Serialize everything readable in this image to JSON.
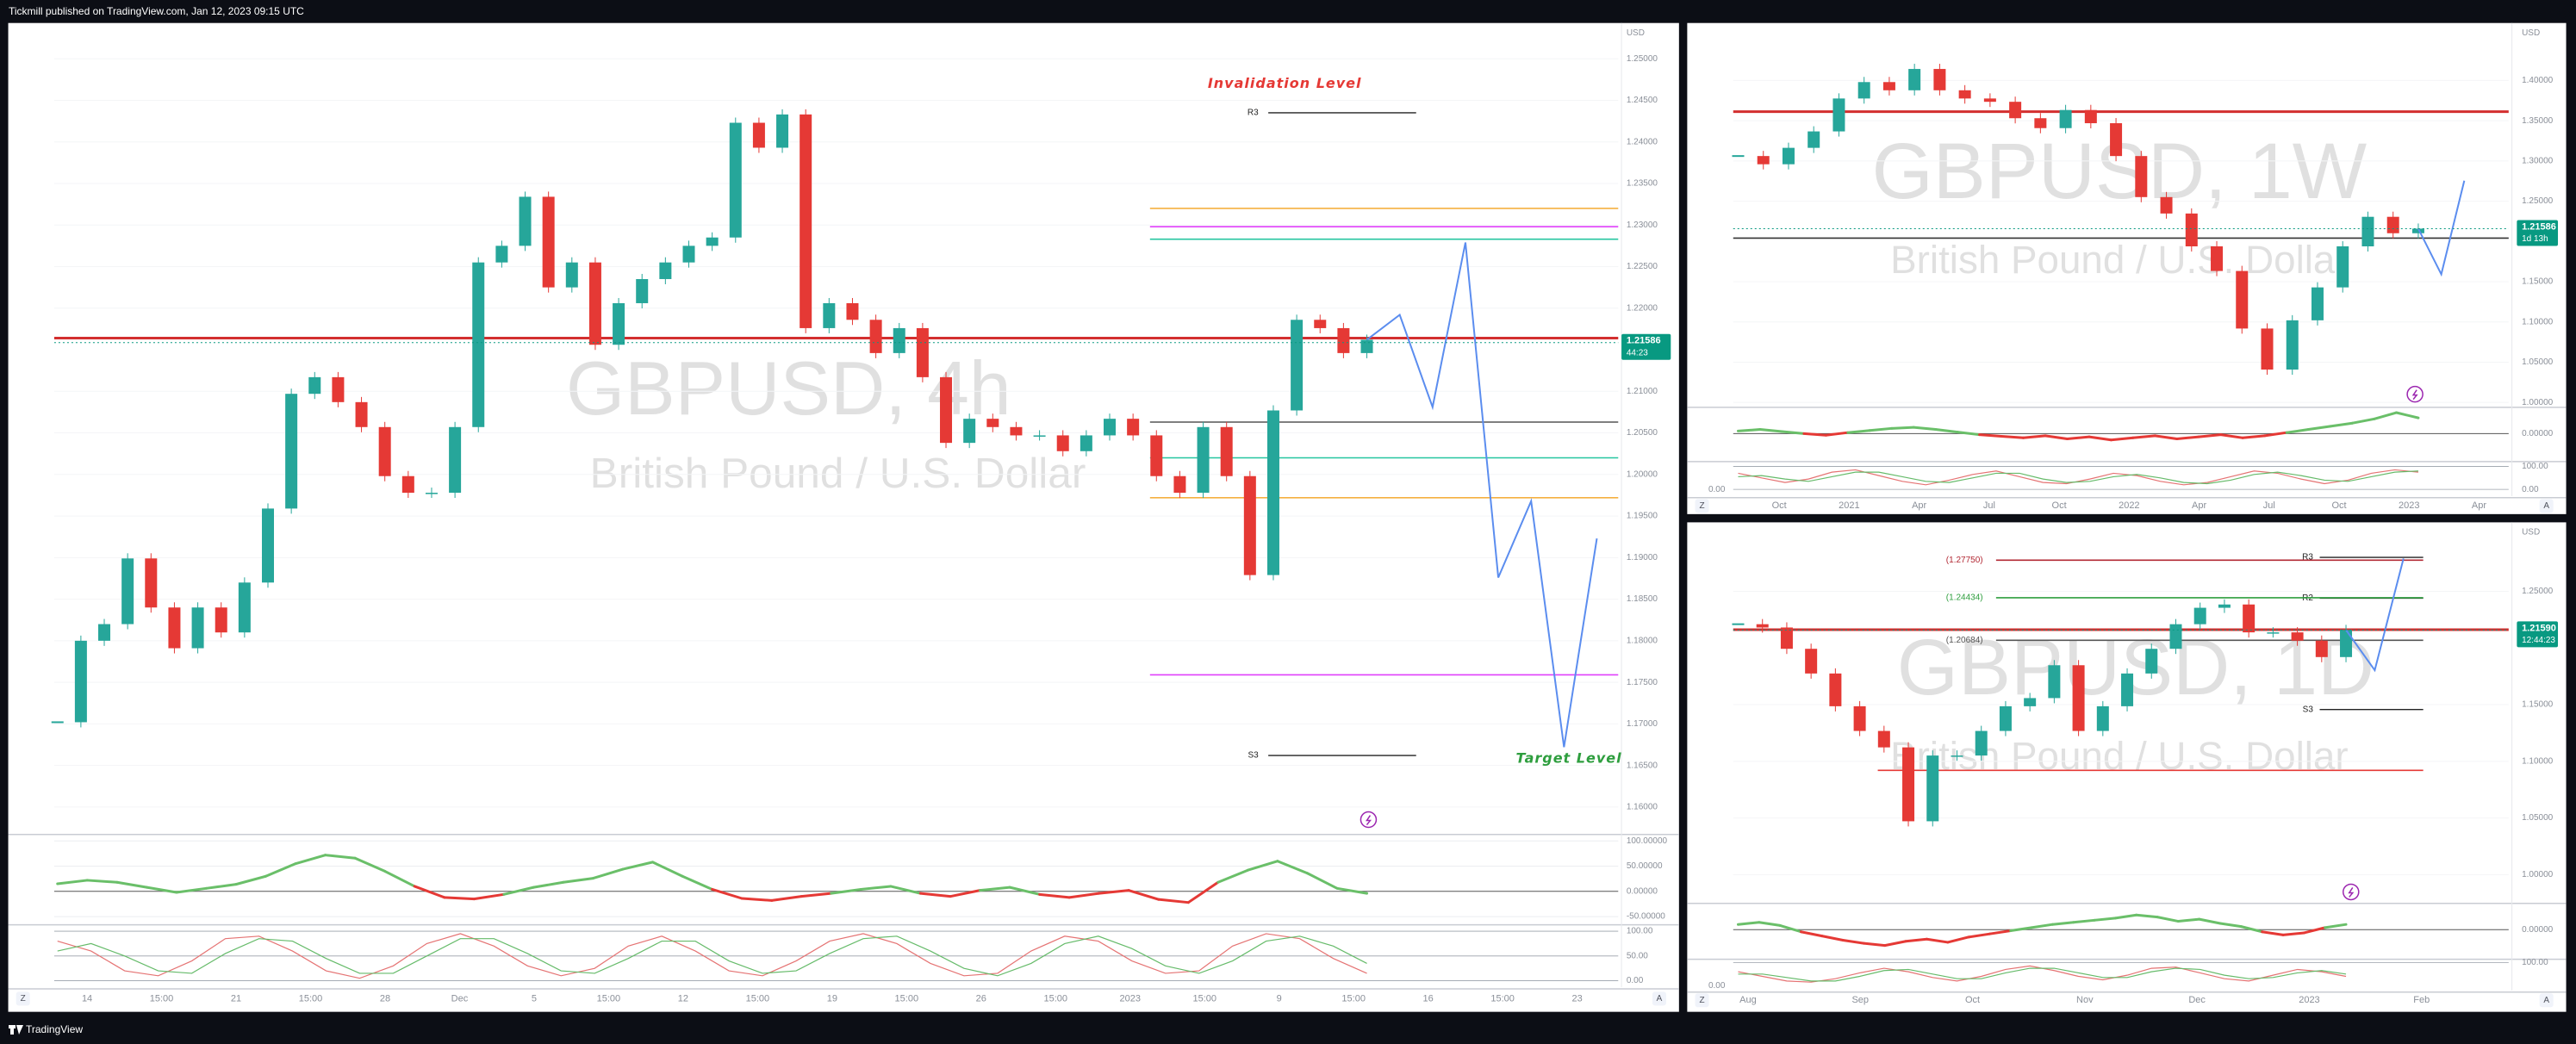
{
  "header": {
    "text": "Tickmill published on TradingView.com, Jan 12, 2023 09:15 UTC"
  },
  "footer": {
    "brand": "TradingView"
  },
  "chart_data": [
    {
      "type": "candlestick",
      "symbol_title": "GBPUSD, 4h",
      "subtitle": "British Pound / U.S. Dollar",
      "currency": "USD",
      "up_color": "#26a69a",
      "down_color": "#e53935",
      "values": [
        1.1702,
        1.18,
        1.182,
        1.1899,
        1.184,
        1.1791,
        1.184,
        1.181,
        1.187,
        1.1959,
        1.2097,
        1.2117,
        1.2087,
        1.2057,
        1.1998,
        1.1978,
        1.1978,
        1.2057,
        1.2255,
        1.2275,
        1.2334,
        1.2225,
        1.2255,
        1.2156,
        1.2206,
        1.2235,
        1.2255,
        1.2275,
        1.2285,
        1.2423,
        1.2393,
        1.2433,
        1.2176,
        1.2206,
        1.2186,
        1.2146,
        1.2176,
        1.2117,
        1.2038,
        1.2067,
        1.2057,
        1.2047,
        1.2047,
        1.2028,
        1.2047,
        1.2067,
        1.2047,
        1.1998,
        1.1978,
        1.2057,
        1.1998,
        1.1879,
        1.2077,
        1.2186,
        1.2176,
        1.2146,
        1.2162
      ],
      "ylim": [
        1.1571,
        1.2543
      ],
      "yticks": [
        {
          "value": 1.25,
          "label": "1.25000"
        },
        {
          "value": 1.245,
          "label": "1.24500"
        },
        {
          "value": 1.24,
          "label": "1.24000"
        },
        {
          "value": 1.235,
          "label": "1.23500"
        },
        {
          "value": 1.23,
          "label": "1.23000"
        },
        {
          "value": 1.225,
          "label": "1.22500"
        },
        {
          "value": 1.22,
          "label": "1.22000"
        },
        {
          "value": 1.21,
          "label": "1.21000"
        },
        {
          "value": 1.205,
          "label": "1.20500"
        },
        {
          "value": 1.2,
          "label": "1.20000"
        },
        {
          "value": 1.195,
          "label": "1.19500"
        },
        {
          "value": 1.19,
          "label": "1.19000"
        },
        {
          "value": 1.185,
          "label": "1.18500"
        },
        {
          "value": 1.18,
          "label": "1.18000"
        },
        {
          "value": 1.175,
          "label": "1.17500"
        },
        {
          "value": 1.17,
          "label": "1.17000"
        },
        {
          "value": 1.165,
          "label": "1.16500"
        },
        {
          "value": 1.16,
          "label": "1.16000"
        }
      ],
      "current_price": {
        "value": 1.21586,
        "label": "1.21586",
        "countdown": "44:23",
        "color": "#089981"
      },
      "time_labels": [
        "14",
        "15:00",
        "21",
        "15:00",
        "28",
        "Dec",
        "5",
        "15:00",
        "12",
        "15:00",
        "19",
        "15:00",
        "26",
        "15:00",
        "2023",
        "15:00",
        "9",
        "15:00",
        "16",
        "15:00",
        "23"
      ],
      "projection": {
        "color": "#5b8def",
        "values": [
          1.2162,
          1.2192,
          1.2081,
          1.2279,
          1.1876,
          1.1968,
          1.1672,
          1.1923
        ]
      },
      "main_level": {
        "value": 1.2164,
        "color": "#d32f2f"
      },
      "levels": [
        {
          "value": 1.232,
          "color": "#f5b041"
        },
        {
          "value": 1.2298,
          "color": "#e040fb"
        },
        {
          "value": 1.2283,
          "color": "#26c6a0"
        },
        {
          "value": 1.2063,
          "color": "#555555"
        },
        {
          "value": 1.202,
          "color": "#26c6a0"
        },
        {
          "value": 1.1972,
          "color": "#f5b041"
        },
        {
          "value": 1.1759,
          "color": "#e040fb"
        }
      ],
      "pivots": [
        {
          "label": "R3",
          "value": 1.2435
        },
        {
          "label": "S3",
          "value": 1.1662
        }
      ],
      "fib_levels": [],
      "annotations": [
        {
          "text": "Invalidation Level",
          "color": "#e53935"
        },
        {
          "text": "Target Level",
          "color": "#2e9e3e"
        }
      ],
      "oscillator": {
        "ylim": [
          -63,
          113
        ],
        "up_color": "#6abf69",
        "down_color": "#e53935",
        "yticks": [
          {
            "value": 100,
            "label": "100.00000"
          },
          {
            "value": 50,
            "label": "50.00000"
          },
          {
            "value": 0,
            "label": "0.00000"
          },
          {
            "value": -50,
            "label": "-50.00000"
          }
        ],
        "values": [
          15,
          22,
          18,
          8,
          -2,
          6,
          14,
          30,
          55,
          72,
          66,
          40,
          10,
          -12,
          -15,
          -6,
          8,
          18,
          26,
          44,
          58,
          30,
          4,
          -14,
          -18,
          -10,
          -4,
          4,
          10,
          -4,
          -10,
          2,
          8,
          -6,
          -12,
          -4,
          2,
          -16,
          -22,
          18,
          42,
          60,
          36,
          6,
          -4
        ]
      },
      "stochastic": {
        "ylim": [
          -13,
          113
        ],
        "yticks": [
          {
            "value": 100,
            "label": "100.00"
          },
          {
            "value": 50,
            "label": "50.00"
          },
          {
            "value": 0,
            "label": "0.00"
          }
        ],
        "left_labels": [],
        "series": [
          {
            "color": "#e57373",
            "values": [
              80,
              60,
              20,
              10,
              40,
              85,
              90,
              60,
              20,
              5,
              30,
              75,
              95,
              70,
              30,
              10,
              25,
              70,
              90,
              60,
              20,
              10,
              40,
              80,
              95,
              75,
              35,
              10,
              15,
              60,
              90,
              80,
              40,
              15,
              20,
              70,
              95,
              85,
              45,
              15
            ]
          },
          {
            "color": "#66bb6a",
            "values": [
              60,
              75,
              50,
              20,
              15,
              55,
              85,
              80,
              45,
              15,
              15,
              50,
              85,
              85,
              55,
              20,
              15,
              45,
              80,
              80,
              40,
              15,
              20,
              55,
              85,
              90,
              60,
              25,
              10,
              35,
              75,
              90,
              65,
              30,
              15,
              40,
              80,
              90,
              70,
              35
            ]
          }
        ]
      },
      "buttons": [
        "Z",
        "A"
      ]
    },
    {
      "type": "candlestick",
      "symbol_title": "GBPUSD, 1W",
      "subtitle": "British Pound / U.S. Dollar",
      "currency": "USD",
      "up_color": "#26a69a",
      "down_color": "#e53935",
      "values": [
        1.3061,
        1.2959,
        1.3163,
        1.3367,
        1.3776,
        1.398,
        1.3878,
        1.4143,
        1.3878,
        1.3776,
        1.3735,
        1.3531,
        1.3408,
        1.3633,
        1.3469,
        1.3061,
        1.2551,
        1.2347,
        1.1939,
        1.1633,
        1.0918,
        1.0408,
        1.102,
        1.1429,
        1.1939,
        1.2306,
        1.2102,
        1.2159
      ],
      "ylim": [
        0.9959,
        1.4714
      ],
      "yticks": [
        {
          "value": 1.4,
          "label": "1.40000"
        },
        {
          "value": 1.35,
          "label": "1.35000"
        },
        {
          "value": 1.3,
          "label": "1.30000"
        },
        {
          "value": 1.25,
          "label": "1.25000"
        },
        {
          "value": 1.15,
          "label": "1.15000"
        },
        {
          "value": 1.1,
          "label": "1.10000"
        },
        {
          "value": 1.05,
          "label": "1.05000"
        },
        {
          "value": 1.0,
          "label": "1.00000"
        }
      ],
      "current_price": {
        "value": 1.21586,
        "label": "1.21586",
        "countdown": "1d 13h",
        "color": "#089981"
      },
      "time_labels": [
        "Oct",
        "2021",
        "Apr",
        "Jul",
        "Oct",
        "2022",
        "Apr",
        "Jul",
        "Oct",
        "2023",
        "Apr"
      ],
      "projection": {
        "color": "#5b8def",
        "values": [
          1.2159,
          1.1592,
          1.2755
        ]
      },
      "main_level": {
        "value": 1.3612,
        "color": "#d32f2f"
      },
      "levels": [
        {
          "value": 1.2041,
          "color": "#333333"
        }
      ],
      "pivots": [],
      "fib_levels": [],
      "annotations": [],
      "oscillator": {
        "ylim": [
          -50,
          50
        ],
        "up_color": "#6abf69",
        "down_color": "#e53935",
        "yticks": [
          {
            "value": 0,
            "label": "0.00000"
          }
        ],
        "values": [
          5,
          8,
          4,
          0,
          -3,
          2,
          6,
          10,
          12,
          8,
          3,
          -2,
          -5,
          -8,
          -4,
          -10,
          -6,
          -12,
          -8,
          -4,
          -10,
          -6,
          -2,
          -8,
          -4,
          2,
          8,
          14,
          20,
          28,
          40,
          30
        ]
      },
      "stochastic": {
        "ylim": [
          -29,
          121
        ],
        "yticks": [
          {
            "value": 100,
            "label": "100.00"
          },
          {
            "value": 0,
            "label": "0.00"
          }
        ],
        "left_labels": [
          {
            "value": 0,
            "label": "0.00"
          }
        ],
        "series": [
          {
            "color": "#e57373",
            "values": [
              70,
              50,
              30,
              45,
              75,
              85,
              60,
              35,
              20,
              40,
              65,
              80,
              55,
              30,
              25,
              45,
              70,
              60,
              35,
              20,
              30,
              55,
              80,
              70,
              45,
              25,
              40,
              70,
              85,
              75
            ]
          },
          {
            "color": "#66bb6a",
            "values": [
              55,
              60,
              45,
              35,
              55,
              75,
              75,
              55,
              35,
              30,
              50,
              70,
              70,
              45,
              30,
              35,
              55,
              65,
              50,
              30,
              25,
              40,
              65,
              75,
              60,
              40,
              35,
              55,
              75,
              80
            ]
          }
        ]
      },
      "buttons": [
        "Z",
        "A"
      ]
    },
    {
      "type": "candlestick",
      "symbol_title": "GBPUSD, 1D",
      "subtitle": "British Pound / U.S. Dollar",
      "currency": "USD",
      "up_color": "#26a69a",
      "down_color": "#e53935",
      "values": [
        1.221,
        1.2181,
        1.1993,
        1.1775,
        1.1486,
        1.1268,
        1.1123,
        1.0471,
        1.1051,
        1.1051,
        1.1268,
        1.1486,
        1.1558,
        1.1848,
        1.1268,
        1.1486,
        1.1775,
        1.1993,
        1.221,
        1.2355,
        1.2384,
        1.2138,
        1.2138,
        1.2065,
        1.192,
        1.2159
      ],
      "ylim": [
        0.9775,
        1.3109
      ],
      "yticks": [
        {
          "value": 1.25,
          "label": "1.25000"
        },
        {
          "value": 1.15,
          "label": "1.15000"
        },
        {
          "value": 1.1,
          "label": "1.10000"
        },
        {
          "value": 1.05,
          "label": "1.05000"
        },
        {
          "value": 1.0,
          "label": "1.00000"
        }
      ],
      "current_price": {
        "value": 1.2159,
        "label": "1.21590",
        "countdown": "12:44:23",
        "color": "#089981"
      },
      "time_labels": [
        "Aug",
        "Sep",
        "Oct",
        "Nov",
        "Dec",
        "2023",
        "Feb"
      ],
      "projection": {
        "color": "#5b8def",
        "values": [
          1.2159,
          1.1804,
          1.279
        ]
      },
      "main_level": {
        "value": 1.2162,
        "color": "#d32f2f"
      },
      "levels": [
        {
          "value": 1.092,
          "color": "#e53935"
        }
      ],
      "pivots": [
        {
          "label": "R3",
          "value": 1.28
        },
        {
          "label": "R2",
          "value": 1.244
        },
        {
          "label": "S3",
          "value": 1.1457
        }
      ],
      "fib_levels": [
        {
          "value": 1.2775,
          "label": "(1.27750)",
          "color": "#b22833"
        },
        {
          "value": 1.24434,
          "label": "(1.24434)",
          "color": "#2e9e3e"
        },
        {
          "value": 1.20684,
          "label": "(1.20684)",
          "color": "#555555"
        }
      ],
      "annotations": [],
      "oscillator": {
        "ylim": [
          -50,
          50
        ],
        "up_color": "#6abf69",
        "down_color": "#e53935",
        "yticks": [
          {
            "value": 0,
            "label": "0.00000"
          }
        ],
        "values": [
          10,
          14,
          8,
          -4,
          -12,
          -20,
          -26,
          -30,
          -22,
          -18,
          -24,
          -14,
          -8,
          -2,
          4,
          10,
          14,
          18,
          22,
          28,
          24,
          16,
          20,
          12,
          6,
          -4,
          -10,
          -6,
          4,
          10
        ]
      },
      "stochastic": {
        "ylim": [
          -21,
          114
        ],
        "yticks": [
          {
            "value": 100,
            "label": "100.00"
          }
        ],
        "left_labels": [
          {
            "value": 0,
            "label": "0.00"
          }
        ],
        "series": [
          {
            "color": "#e57373",
            "values": [
              60,
              40,
              20,
              15,
              30,
              55,
              75,
              60,
              35,
              20,
              40,
              70,
              85,
              65,
              40,
              25,
              45,
              75,
              80,
              55,
              30,
              20,
              45,
              70,
              60,
              40
            ]
          },
          {
            "color": "#66bb6a",
            "values": [
              50,
              50,
              35,
              20,
              20,
              40,
              65,
              70,
              50,
              30,
              30,
              55,
              75,
              75,
              55,
              35,
              35,
              60,
              75,
              70,
              45,
              30,
              35,
              55,
              65,
              50
            ]
          }
        ]
      },
      "buttons": [
        "Z",
        "A"
      ]
    }
  ]
}
